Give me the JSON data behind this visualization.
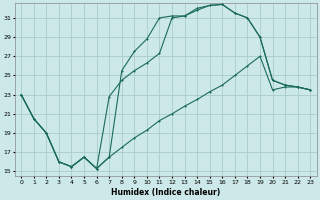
{
  "xlabel": "Humidex (Indice chaleur)",
  "background_color": "#cde8e8",
  "grid_color": "#aacccc",
  "line_color": "#1a6b5a",
  "xlim": [
    -0.5,
    23.5
  ],
  "ylim": [
    14.5,
    32.5
  ],
  "yticks": [
    15,
    17,
    19,
    21,
    23,
    25,
    27,
    29,
    31
  ],
  "xticks": [
    0,
    1,
    2,
    3,
    4,
    5,
    6,
    7,
    8,
    9,
    10,
    11,
    12,
    13,
    14,
    15,
    16,
    17,
    18,
    19,
    20,
    21,
    22,
    23
  ],
  "curve1_x": [
    0,
    1,
    2,
    3,
    4,
    5,
    6,
    7,
    8,
    9,
    10,
    11,
    12,
    13,
    14,
    15,
    16,
    17,
    18,
    19,
    20,
    21,
    22,
    23
  ],
  "curve1_y": [
    23,
    20.5,
    19,
    16,
    15.5,
    16.5,
    15.3,
    16.5,
    25.5,
    27.5,
    28.8,
    31,
    31.2,
    31.2,
    32,
    32.3,
    32.4,
    31.5,
    31,
    29,
    24.5,
    24.0,
    23.8,
    23.5
  ],
  "curve2_x": [
    0,
    1,
    2,
    3,
    4,
    5,
    6,
    7,
    8,
    9,
    10,
    11,
    12,
    13,
    14,
    15,
    16,
    17,
    18,
    19,
    20,
    21,
    22,
    23
  ],
  "curve2_y": [
    23,
    20.5,
    19,
    16,
    15.5,
    16.5,
    15.3,
    22.8,
    24.5,
    25.5,
    26.3,
    27.3,
    31,
    31.2,
    31.8,
    32.3,
    32.4,
    31.5,
    31,
    29,
    24.5,
    24.0,
    23.8,
    23.5
  ],
  "curve3_x": [
    0,
    1,
    2,
    3,
    4,
    5,
    6,
    7,
    8,
    9,
    10,
    11,
    12,
    13,
    14,
    15,
    16,
    17,
    18,
    19,
    20,
    21,
    22,
    23
  ],
  "curve3_y": [
    23,
    20.5,
    19,
    16,
    15.5,
    16.5,
    15.3,
    16.5,
    17.5,
    18.5,
    19.3,
    20.3,
    21.0,
    21.8,
    22.5,
    23.3,
    24.0,
    25.0,
    26.0,
    27.0,
    23.5,
    23.8,
    23.8,
    23.5
  ]
}
